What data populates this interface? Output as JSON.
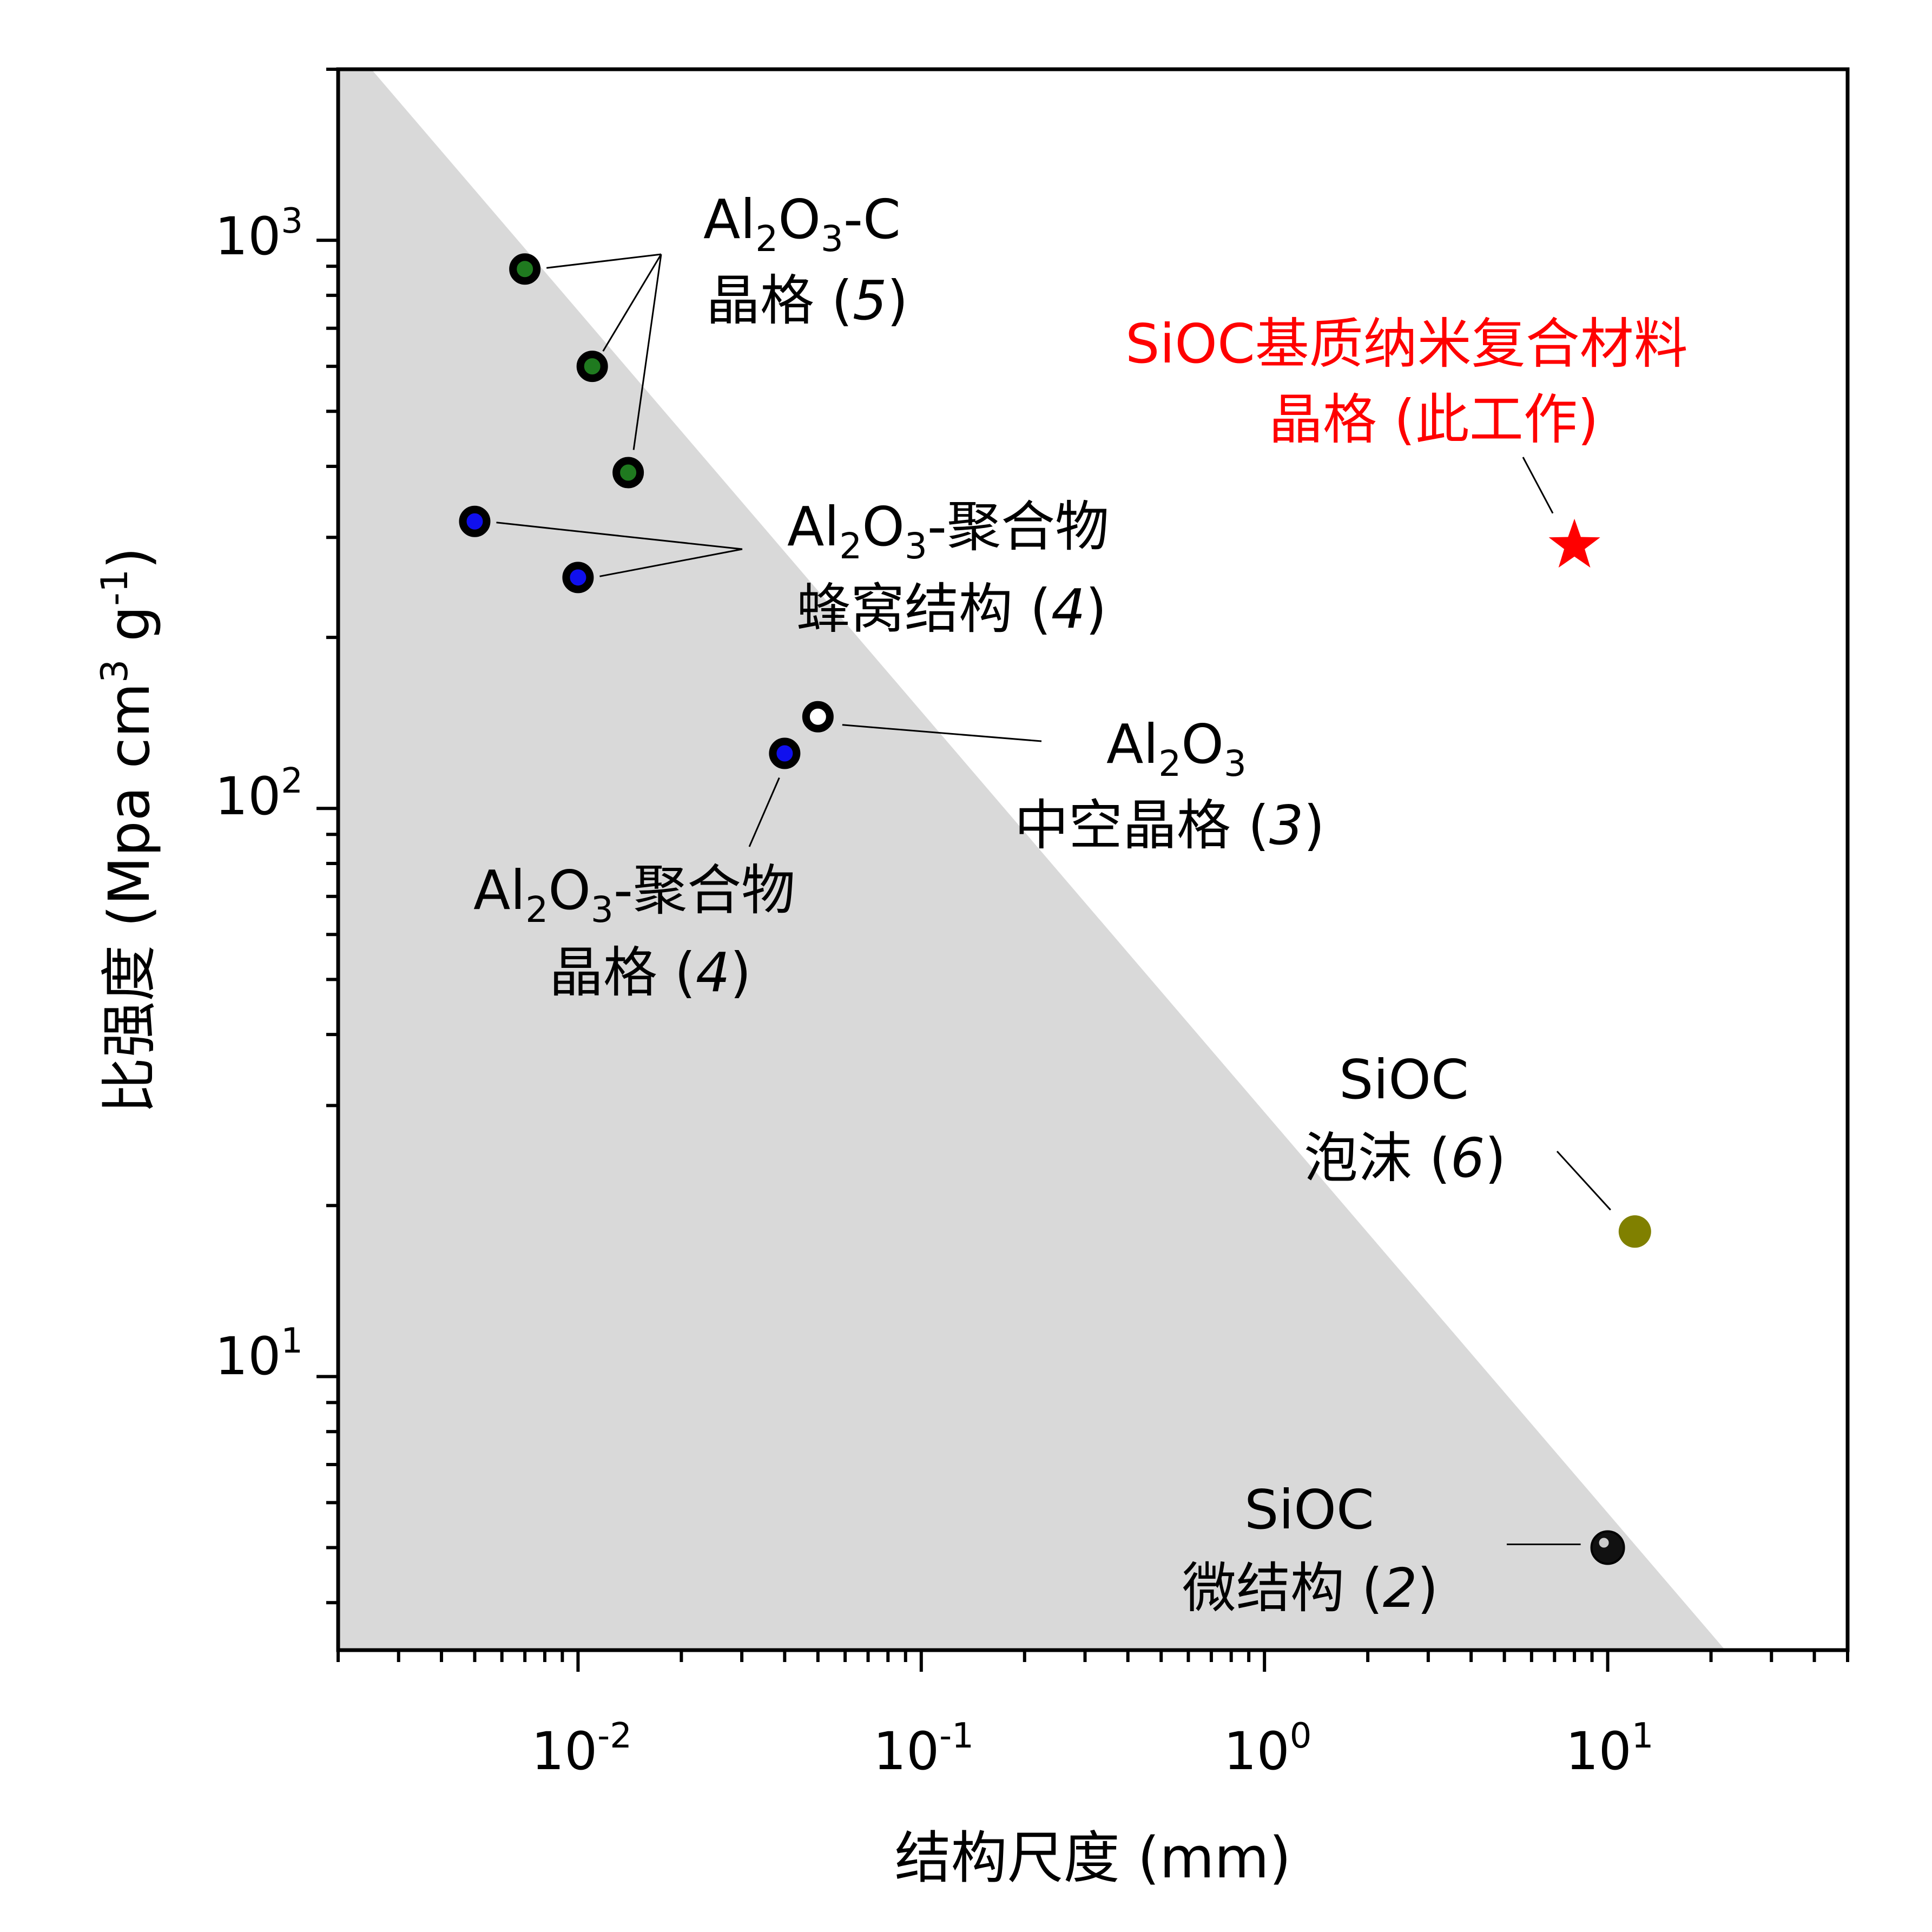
{
  "chart_data": {
    "type": "scatter",
    "xlabel": "结构尺度 (mm)",
    "ylabel": "比强度 (Mpa cm3 g-1)",
    "ylabel_parts": {
      "text": "比强度 (Mpa cm",
      "sup1": "3",
      "mid": " g",
      "sup2": "-1",
      "end": ")"
    },
    "x_scale": "log",
    "y_scale": "log",
    "xlim": [
      0.002,
      50
    ],
    "ylim": [
      3.3,
      2000
    ],
    "grid": false,
    "legend": "none",
    "x_ticks": [
      {
        "value": 0.01,
        "base": "10",
        "exp": "-2"
      },
      {
        "value": 0.1,
        "base": "10",
        "exp": "-1"
      },
      {
        "value": 1,
        "base": "10",
        "exp": "0"
      },
      {
        "value": 10,
        "base": "10",
        "exp": "1"
      }
    ],
    "y_ticks": [
      {
        "value": 10,
        "base": "10",
        "exp": "1"
      },
      {
        "value": 100,
        "base": "10",
        "exp": "2"
      },
      {
        "value": 1000,
        "base": "10",
        "exp": "3"
      }
    ],
    "shaded_region": {
      "description": "",
      "color": "#d9d9d9",
      "boundary": [
        [
          0.0025,
          2000
        ],
        [
          22,
          3.3
        ]
      ]
    },
    "series": [
      {
        "group": "al2o3-c-lattice",
        "fill": "#1f7a1f",
        "stroke": "#000000",
        "points": [
          [
            0.007,
            890
          ],
          [
            0.011,
            600
          ],
          [
            0.014,
            390
          ]
        ]
      },
      {
        "group": "al2o3-polymer-honeycomb",
        "fill": "#1010ee",
        "stroke": "#000000",
        "points": [
          [
            0.005,
            320
          ],
          [
            0.01,
            255
          ]
        ]
      },
      {
        "group": "al2o3-polymer-lattice",
        "fill": "#1010ee",
        "stroke": "#000000",
        "points": [
          [
            0.04,
            125
          ]
        ]
      },
      {
        "group": "al2o3-hollow-lattice",
        "fill": "#ffffff",
        "stroke": "#000000",
        "points": [
          [
            0.05,
            145
          ]
        ]
      },
      {
        "group": "sioc-foam",
        "fill": "#808000",
        "stroke": "#808000",
        "points": [
          [
            12,
            18
          ]
        ]
      },
      {
        "group": "sioc-microstructure",
        "fill": "#111111",
        "stroke": "#000000",
        "points": [
          [
            10,
            5
          ]
        ]
      },
      {
        "group": "sioc-nanocomposite-lattice",
        "fill": "#ff0000",
        "stroke": "#ff0000",
        "marker": "star",
        "points": [
          [
            8,
            290
          ]
        ]
      }
    ],
    "annotations": [
      {
        "id": "al2o3-c",
        "line1_parts": [
          "Al",
          "2",
          "O",
          "3",
          "-C"
        ],
        "line2": "晶格 (",
        "ref": "5",
        "close": ")"
      },
      {
        "id": "al2o3-polymer-honeycomb",
        "line1_parts": [
          "Al",
          "2",
          "O",
          "3",
          "-聚合物"
        ],
        "line2": "蜂窝结构 (",
        "ref": "4",
        "close": ")"
      },
      {
        "id": "al2o3-hollow",
        "line1_parts": [
          "Al",
          "2",
          "O",
          "3",
          ""
        ],
        "line2": "中空晶格 (",
        "ref": "3",
        "close": ")"
      },
      {
        "id": "al2o3-polymer-lattice",
        "line1_parts": [
          "Al",
          "2",
          "O",
          "3",
          "-聚合物"
        ],
        "line2": "晶格 (",
        "ref": "4",
        "close": ")"
      },
      {
        "id": "sioc-nano",
        "line1": "SiOC基质纳米复合材料",
        "line2": "晶格 (此工作)"
      },
      {
        "id": "sioc-foam",
        "line1": "SiOC",
        "line2": "泡沫 (",
        "ref": "6",
        "close": ")"
      },
      {
        "id": "sioc-micro",
        "line1": "SiOC",
        "line2": "微结构 (",
        "ref": "2",
        "close": ")"
      }
    ]
  }
}
